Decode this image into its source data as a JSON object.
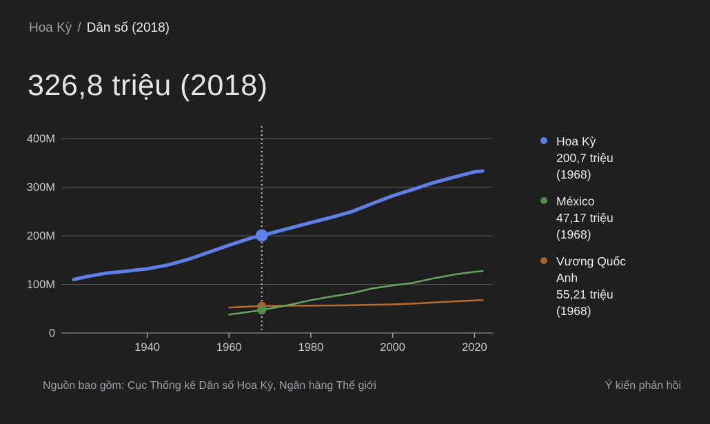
{
  "breadcrumb": {
    "parent": "Hoa Kỳ",
    "separator": "/",
    "current": "Dân số (2018)"
  },
  "title": "326,8 triệu (2018)",
  "legend": {
    "items": [
      {
        "name": "Hoa Kỳ",
        "value": "200,7 triệu",
        "year": "(1968)",
        "color": "#5a81e8"
      },
      {
        "name": "México",
        "value": "47,17 triệu",
        "year": "(1968)",
        "color": "#53904b"
      },
      {
        "name": "Vương Quốc Anh",
        "value": "55,21 triệu",
        "year": "(1968)",
        "color": "#a8622b"
      }
    ]
  },
  "footer": {
    "source": "Nguồn bao gồm: Cục Thống kê Dân số Hoa Kỳ, Ngân hàng Thế giới",
    "feedback": "Ý kiến phản hồi"
  },
  "colors": {
    "background": "#1f1f1f",
    "gridline": "#4a4c4e",
    "axis_line": "#77797c",
    "tick_mark": "#9b9da0",
    "tick_label": "#c6c8ca",
    "marker_guide": "#c8c8c8",
    "us_blue": "#5e80e6",
    "mexico_green": "#64a65e",
    "uk_orange": "#b76b2c"
  },
  "chart_data": {
    "type": "line",
    "title": "326,8 triệu (2018)",
    "xlabel": "",
    "ylabel": "",
    "unit": "millions of people",
    "xlim": [
      1919,
      2024.5
    ],
    "ylim": [
      0,
      400
    ],
    "grid": "horizontal",
    "legend_position": "right",
    "x_ticks": [
      1940,
      1960,
      1980,
      2000,
      2020
    ],
    "y_ticks": [
      {
        "value": 0,
        "label": "0"
      },
      {
        "value": 100,
        "label": "100M"
      },
      {
        "value": 200,
        "label": "200M"
      },
      {
        "value": 300,
        "label": "300M"
      },
      {
        "value": 400,
        "label": "400M"
      }
    ],
    "marker_year": 1968,
    "series": [
      {
        "name": "Vương Quốc Anh",
        "color": "#b76b2c",
        "dot_color": "#a8622b",
        "line_width": 2.5,
        "marker_value": 55.21,
        "marker_radius": 6.5,
        "points": [
          [
            1960,
            52.4
          ],
          [
            1965,
            54.4
          ],
          [
            1968,
            55.21
          ],
          [
            1970,
            55.7
          ],
          [
            1975,
            56.2
          ],
          [
            1980,
            56.3
          ],
          [
            1985,
            56.6
          ],
          [
            1990,
            57.2
          ],
          [
            1995,
            58.0
          ],
          [
            2000,
            58.9
          ],
          [
            2005,
            60.4
          ],
          [
            2010,
            62.8
          ],
          [
            2015,
            65.1
          ],
          [
            2020,
            67.1
          ],
          [
            2022,
            67.5
          ]
        ]
      },
      {
        "name": "México",
        "color": "#64a65e",
        "dot_color": "#53904b",
        "line_width": 2.5,
        "marker_value": 47.17,
        "marker_radius": 6.5,
        "points": [
          [
            1960,
            37.8
          ],
          [
            1965,
            43.5
          ],
          [
            1968,
            47.17
          ],
          [
            1970,
            50.3
          ],
          [
            1975,
            58.1
          ],
          [
            1980,
            67.7
          ],
          [
            1985,
            75.0
          ],
          [
            1990,
            81.7
          ],
          [
            1995,
            91.7
          ],
          [
            2000,
            97.9
          ],
          [
            2005,
            103.2
          ],
          [
            2010,
            112.5
          ],
          [
            2015,
            120.1
          ],
          [
            2020,
            125.9
          ],
          [
            2022,
            127.5
          ]
        ]
      },
      {
        "name": "Hoa Kỳ",
        "color": "#5e80e6",
        "dot_color": "#5a81e8",
        "line_width": 5,
        "marker_value": 200.7,
        "marker_radius": 9,
        "points": [
          [
            1922,
            110.1
          ],
          [
            1925,
            115.8
          ],
          [
            1930,
            123.1
          ],
          [
            1935,
            127.3
          ],
          [
            1940,
            132.1
          ],
          [
            1945,
            139.9
          ],
          [
            1950,
            151.3
          ],
          [
            1955,
            165.9
          ],
          [
            1960,
            180.7
          ],
          [
            1965,
            194.3
          ],
          [
            1968,
            200.7
          ],
          [
            1975,
            216.0
          ],
          [
            1980,
            227.2
          ],
          [
            1985,
            237.9
          ],
          [
            1990,
            249.6
          ],
          [
            1995,
            266.3
          ],
          [
            2000,
            282.2
          ],
          [
            2005,
            295.5
          ],
          [
            2010,
            309.3
          ],
          [
            2015,
            320.7
          ],
          [
            2020,
            331.5
          ],
          [
            2022,
            333.3
          ]
        ]
      }
    ]
  }
}
